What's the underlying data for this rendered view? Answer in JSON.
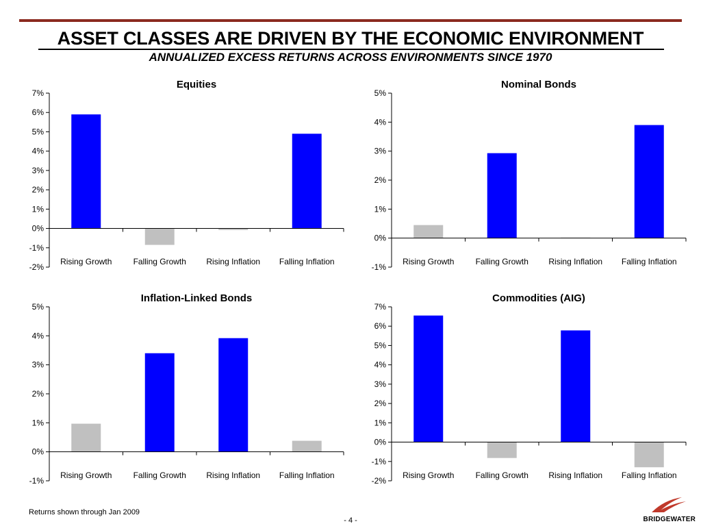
{
  "page": {
    "title": "ASSET CLASSES ARE DRIVEN BY THE ECONOMIC ENVIRONMENT",
    "subtitle": "ANNUALIZED EXCESS RETURNS ACROSS ENVIRONMENTS SINCE 1970",
    "footnote": "Returns shown through Jan 2009",
    "page_number": "- 4 -",
    "logo_text": "BRIDGEWATER"
  },
  "colors": {
    "positive_bar": "#0000ff",
    "negative_bar": "#c0c0c0",
    "rule": "#8b2a1f",
    "logo_red": "#c0392b"
  },
  "chart_data": [
    {
      "type": "bar",
      "title": "Equities",
      "categories": [
        "Rising Growth",
        "Falling Growth",
        "Rising Inflation",
        "Falling Inflation"
      ],
      "values": [
        5.9,
        -0.85,
        -0.08,
        4.9
      ],
      "bar_colors": [
        "#0000ff",
        "#c0c0c0",
        "#c0c0c0",
        "#0000ff"
      ],
      "ylim": [
        -2,
        7
      ],
      "yticks": [
        "-2%",
        "-1%",
        "0%",
        "1%",
        "2%",
        "3%",
        "4%",
        "5%",
        "6%",
        "7%"
      ],
      "grid": false
    },
    {
      "type": "bar",
      "title": "Nominal Bonds",
      "categories": [
        "Rising Growth",
        "Falling Growth",
        "Rising Inflation",
        "Falling Inflation"
      ],
      "values": [
        0.45,
        2.93,
        0.02,
        3.9
      ],
      "bar_colors": [
        "#c0c0c0",
        "#0000ff",
        "#c0c0c0",
        "#0000ff"
      ],
      "ylim": [
        -1,
        5
      ],
      "yticks": [
        "-1%",
        "0%",
        "1%",
        "2%",
        "3%",
        "4%",
        "5%"
      ],
      "grid": false
    },
    {
      "type": "bar",
      "title": "Inflation-Linked Bonds",
      "categories": [
        "Rising Growth",
        "Falling Growth",
        "Rising Inflation",
        "Falling Inflation"
      ],
      "values": [
        0.97,
        3.4,
        3.92,
        0.38
      ],
      "bar_colors": [
        "#c0c0c0",
        "#0000ff",
        "#0000ff",
        "#c0c0c0"
      ],
      "ylim": [
        -1,
        5
      ],
      "yticks": [
        "-1%",
        "0%",
        "1%",
        "2%",
        "3%",
        "4%",
        "5%"
      ],
      "grid": false
    },
    {
      "type": "bar",
      "title": "Commodities (AIG)",
      "categories": [
        "Rising Growth",
        "Falling Growth",
        "Rising Inflation",
        "Falling Inflation"
      ],
      "values": [
        6.55,
        -0.82,
        5.78,
        -1.3
      ],
      "bar_colors": [
        "#0000ff",
        "#c0c0c0",
        "#0000ff",
        "#c0c0c0"
      ],
      "ylim": [
        -2,
        7
      ],
      "yticks": [
        "-2%",
        "-1%",
        "0%",
        "1%",
        "2%",
        "3%",
        "4%",
        "5%",
        "6%",
        "7%"
      ],
      "grid": false
    }
  ]
}
